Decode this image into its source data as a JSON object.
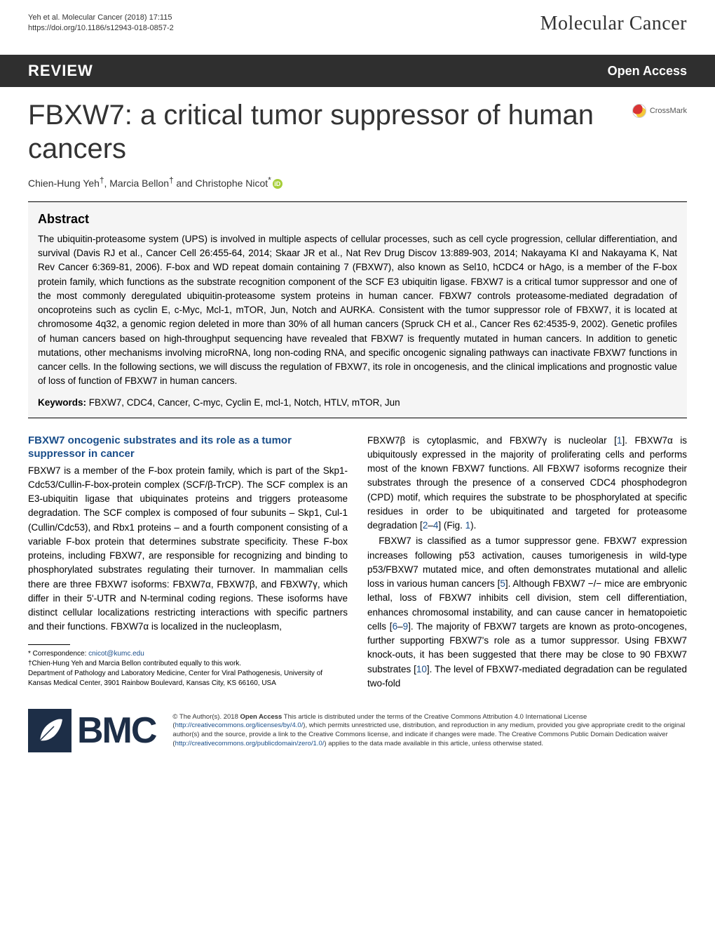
{
  "header": {
    "citation": "Yeh et al. Molecular Cancer  (2018) 17:115",
    "doi": "https://doi.org/10.1186/s12943-018-0857-2",
    "journal": "Molecular Cancer"
  },
  "review_bar": {
    "label": "REVIEW",
    "open_access": "Open Access"
  },
  "title": "FBXW7: a critical tumor suppressor of human cancers",
  "crossmark_label": "CrossMark",
  "authors_html": "Chien-Hung Yeh<sup>†</sup>, Marcia Bellon<sup>†</sup> and Christophe Nicot<sup>*</sup>",
  "abstract": {
    "heading": "Abstract",
    "text": "The ubiquitin-proteasome system (UPS) is involved in multiple aspects of cellular processes, such as cell cycle progression, cellular differentiation, and survival (Davis RJ et al., Cancer Cell 26:455-64, 2014; Skaar JR et al., Nat Rev Drug Discov 13:889-903, 2014; Nakayama KI and Nakayama K, Nat Rev Cancer 6:369-81, 2006). F-box and WD repeat domain containing 7 (FBXW7), also known as Sel10, hCDC4 or hAgo, is a member of the F-box protein family, which functions as the substrate recognition component of the SCF E3 ubiquitin ligase. FBXW7 is a critical tumor suppressor and one of the most commonly deregulated ubiquitin-proteasome system proteins in human cancer. FBXW7 controls proteasome-mediated degradation of oncoproteins such as cyclin E, c-Myc, Mcl-1, mTOR, Jun, Notch and AURKA. Consistent with the tumor suppressor role of FBXW7, it is located at chromosome 4q32, a genomic region deleted in more than 30% of all human cancers (Spruck CH et al., Cancer Res 62:4535-9, 2002). Genetic profiles of human cancers based on high-throughput sequencing have revealed that FBXW7 is frequently mutated in human cancers. In addition to genetic mutations, other mechanisms involving microRNA, long non-coding RNA, and specific oncogenic signaling pathways can inactivate FBXW7 functions in cancer cells. In the following sections, we will discuss the regulation of FBXW7, its role in oncogenesis, and the clinical implications and prognostic value of loss of function of FBXW7 in human cancers.",
    "keywords_label": "Keywords:",
    "keywords": " FBXW7, CDC4, Cancer, C-myc, Cyclin E, mcl-1, Notch, HTLV, mTOR, Jun"
  },
  "body": {
    "section_heading": "FBXW7 oncogenic substrates and its role as a tumor suppressor in cancer",
    "col1_p1": "FBXW7 is a member of the F-box protein family, which is part of the Skp1-Cdc53/Cullin-F-box-protein complex (SCF/β-TrCP). The SCF complex is an E3-ubiquitin ligase that ubiquinates proteins and triggers proteasome degradation. The SCF complex is composed of four subunits – Skp1, Cul-1 (Cullin/Cdc53), and Rbx1 proteins – and a fourth component consisting of a variable F-box protein that determines substrate specificity. These F-box proteins, including FBXW7, are responsible for recognizing and binding to phosphorylated substrates regulating their turnover. In mammalian cells there are three FBXW7 isoforms: FBXW7α, FBXW7β, and FBXW7γ, which differ in their 5'-UTR and N-terminal coding regions. These isoforms have distinct cellular localizations restricting interactions with specific partners and their functions. FBXW7α is localized in the nucleoplasm,",
    "col2_p1_pre": "FBXW7β is cytoplasmic, and FBXW7γ is nucleolar [",
    "col2_p1_ref1": "1",
    "col2_p1_mid1": "]. FBXW7α is ubiquitously expressed in the majority of proliferating cells and performs most of the known FBXW7 functions. All FBXW7 isoforms recognize their substrates through the presence of a conserved CDC4 phosphodegron (CPD) motif, which requires the substrate to be phosphorylated at specific residues in order to be ubiquitinated and targeted for proteasome degradation [",
    "col2_p1_ref2": "2",
    "col2_p1_dash": "–",
    "col2_p1_ref3": "4",
    "col2_p1_mid2": "] (Fig. ",
    "col2_p1_fig": "1",
    "col2_p1_end": ").",
    "col2_p2_pre": "FBXW7 is classified as a tumor suppressor gene. FBXW7 expression increases following p53 activation, causes tumorigenesis in wild-type p53/FBXW7 mutated mice, and often demonstrates mutational and allelic loss in various human cancers [",
    "col2_p2_ref5": "5",
    "col2_p2_mid1": "]. Although FBXW7 −/− mice are embryonic lethal, loss of FBXW7 inhibits cell division, stem cell differentiation, enhances chromosomal instability, and can cause cancer in hematopoietic cells [",
    "col2_p2_ref6": "6",
    "col2_p2_dash": "–",
    "col2_p2_ref9": "9",
    "col2_p2_mid2": "]. The majority of FBXW7 targets are known as proto-oncogenes, further supporting FBXW7's role as a tumor suppressor. Using FBXW7 knock-outs, it has been suggested that there may be close to 90 FBXW7 substrates [",
    "col2_p2_ref10": "10",
    "col2_p2_end": "]. The level of FBXW7-mediated degradation can be regulated two-fold"
  },
  "footnotes": {
    "correspondence_label": "* Correspondence: ",
    "correspondence_email": "cnicot@kumc.edu",
    "contrib": "†Chien-Hung Yeh and Marcia Bellon contributed equally to this work.",
    "affiliation": "Department of Pathology and Laboratory Medicine, Center for Viral Pathogenesis, University of Kansas Medical Center, 3901 Rainbow Boulevard, Kansas City, KS 66160, USA"
  },
  "footer": {
    "bmc": "BMC",
    "license_pre": "© The Author(s). 2018 ",
    "license_bold": "Open Access",
    "license_mid1": " This article is distributed under the terms of the Creative Commons Attribution 4.0 International License (",
    "license_link1": "http://creativecommons.org/licenses/by/4.0/",
    "license_mid2": "), which permits unrestricted use, distribution, and reproduction in any medium, provided you give appropriate credit to the original author(s) and the source, provide a link to the Creative Commons license, and indicate if changes were made. The Creative Commons Public Domain Dedication waiver (",
    "license_link2": "http://creativecommons.org/publicdomain/zero/1.0/",
    "license_end": ") applies to the data made available in this article, unless otherwise stated."
  },
  "colors": {
    "review_bar_bg": "#2f2f2f",
    "heading_blue": "#1a4e8a",
    "bmc_navy": "#1d2e47",
    "abstract_bg": "#f5f5f5",
    "orcid_green": "#a6ce39"
  }
}
